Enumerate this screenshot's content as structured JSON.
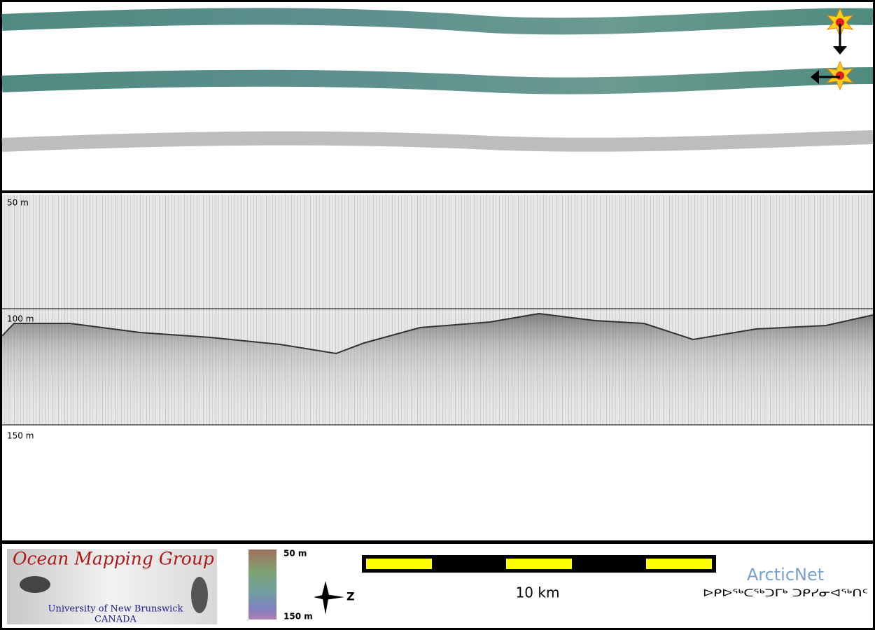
{
  "depth_labels": [
    "50 m",
    "100 m",
    "150 m"
  ],
  "logo": {
    "title": "Ocean Mapping Group",
    "university": "University of New Brunswick",
    "country": "CANADA"
  },
  "colorbar": {
    "top": "50 m",
    "bottom": "150 m"
  },
  "north": "Z",
  "scale_bar": {
    "label": "10 km"
  },
  "partner": {
    "name": "ArcticNet",
    "syllabics": "ᐅᑭᐅᖅᑕᖅᑐᒥᒃ ᑐᑭᓯᓂᐊᖅᑎᑦ"
  }
}
